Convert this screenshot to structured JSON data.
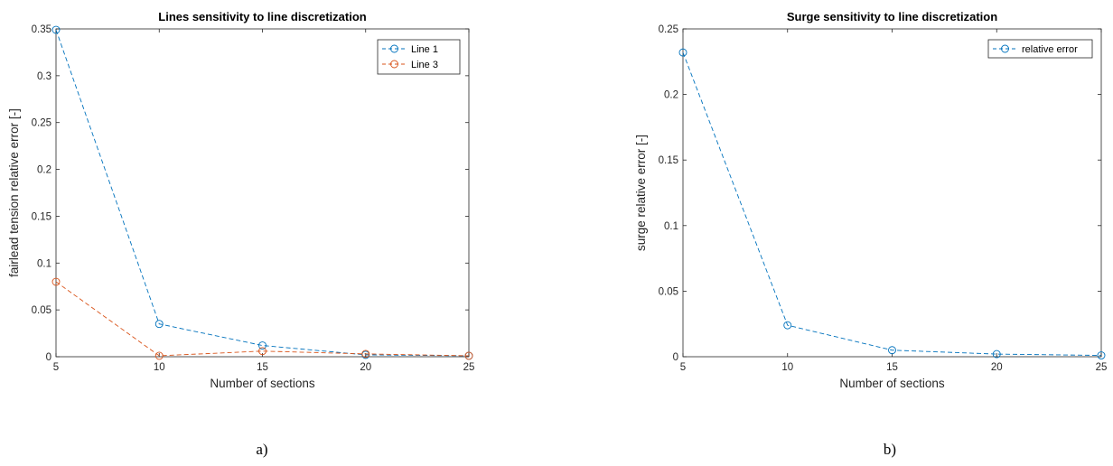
{
  "chart_data": [
    {
      "type": "line",
      "title": "Lines sensitivity to line discretization",
      "xlabel": "Number of sections",
      "ylabel": "fairlead tension relative error [-]",
      "x": [
        5,
        10,
        15,
        20,
        25
      ],
      "xlim": [
        5,
        25
      ],
      "ylim": [
        0,
        0.35
      ],
      "xticks": [
        "5",
        "10",
        "15",
        "20",
        "25"
      ],
      "yticks": [
        "0",
        "0.05",
        "0.1",
        "0.15",
        "0.2",
        "0.25",
        "0.3",
        "0.35"
      ],
      "series": [
        {
          "name": "Line 1",
          "values": [
            0.349,
            0.035,
            0.012,
            0.002,
            0.001
          ],
          "color": "#0072BD"
        },
        {
          "name": "Line 3",
          "values": [
            0.08,
            0.001,
            0.006,
            0.003,
            0.001
          ],
          "color": "#D95319"
        }
      ],
      "legend": "top-right",
      "grid": false,
      "marker": "circle",
      "linestyle": "dashed",
      "caption": "a)"
    },
    {
      "type": "line",
      "title": "Surge sensitivity to line discretization",
      "xlabel": "Number of sections",
      "ylabel": "surge relative error [-]",
      "x": [
        5,
        10,
        15,
        20,
        25
      ],
      "xlim": [
        5,
        25
      ],
      "ylim": [
        0,
        0.25
      ],
      "xticks": [
        "5",
        "10",
        "15",
        "20",
        "25"
      ],
      "yticks": [
        "0",
        "0.05",
        "0.1",
        "0.15",
        "0.2",
        "0.25"
      ],
      "series": [
        {
          "name": "relative error",
          "values": [
            0.232,
            0.024,
            0.005,
            0.002,
            0.001
          ],
          "color": "#0072BD"
        }
      ],
      "legend": "top-right",
      "grid": false,
      "marker": "circle",
      "linestyle": "dashed",
      "caption": "b)"
    }
  ]
}
